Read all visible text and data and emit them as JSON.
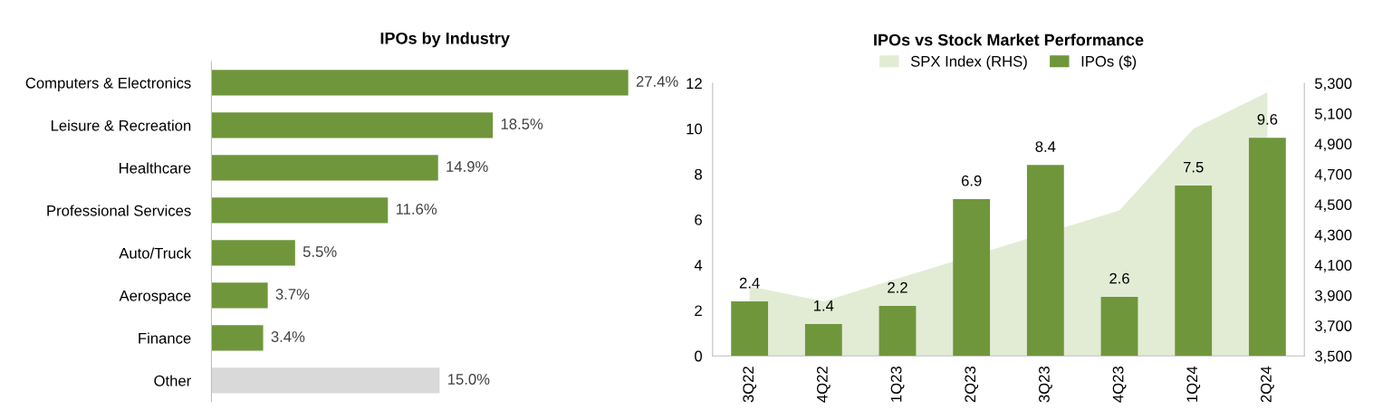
{
  "chart_data": [
    {
      "type": "bar",
      "title": "IPOs by Industry",
      "orientation": "horizontal",
      "data_labels": true,
      "categories": [
        "Computers & Electronics",
        "Leisure & Recreation",
        "Healthcare",
        "Professional Services",
        "Auto/Truck",
        "Aerospace",
        "Finance",
        "Other"
      ],
      "values": [
        27.4,
        18.5,
        14.9,
        11.6,
        5.5,
        3.7,
        3.4,
        15.0
      ],
      "value_labels": [
        "27.4%",
        "18.5%",
        "14.9%",
        "11.6%",
        "5.5%",
        "3.7%",
        "3.4%",
        "15.0%"
      ],
      "colors": [
        "#70963c",
        "#70963c",
        "#70963c",
        "#70963c",
        "#70963c",
        "#70963c",
        "#70963c",
        "#d9d9d9"
      ],
      "tick_labels": "y"
    },
    {
      "type": "bar",
      "title": "IPOs vs Stock Market Performance",
      "legend": "top",
      "categories": [
        "3Q22",
        "4Q22",
        "1Q23",
        "2Q23",
        "3Q23",
        "4Q23",
        "1Q24",
        "2Q24"
      ],
      "series": [
        {
          "name": "SPX Index (RHS)",
          "type": "area",
          "axis": "y2",
          "color": "#e2ecd5",
          "values": [
            3960,
            3860,
            4010,
            null,
            null,
            4460,
            5000,
            5240
          ]
        },
        {
          "name": "IPOs ($)",
          "type": "bar",
          "color": "#70963c",
          "values": [
            2.4,
            1.4,
            2.2,
            6.9,
            8.4,
            2.6,
            7.5,
            9.6
          ],
          "value_labels": [
            "2.4",
            "1.4",
            "2.2",
            "6.9",
            "8.4",
            "2.6",
            "7.5",
            "9.6"
          ]
        }
      ],
      "ylim": [
        0,
        12
      ],
      "yticks": [
        0,
        2,
        4,
        6,
        8,
        10,
        12
      ],
      "y2lim": [
        3500,
        5300
      ],
      "y2ticks": [
        {
          "value": 3500,
          "label": "3,500"
        },
        {
          "value": 3700,
          "label": "3,700"
        },
        {
          "value": 3900,
          "label": "3,900"
        },
        {
          "value": 4100,
          "label": "4,100"
        },
        {
          "value": 4300,
          "label": "4,300"
        },
        {
          "value": 4500,
          "label": "4,500"
        },
        {
          "value": 4700,
          "label": "4,700"
        },
        {
          "value": 4900,
          "label": "4,900"
        },
        {
          "value": 5100,
          "label": "5,100"
        },
        {
          "value": 5300,
          "label": "5,300"
        }
      ]
    }
  ]
}
